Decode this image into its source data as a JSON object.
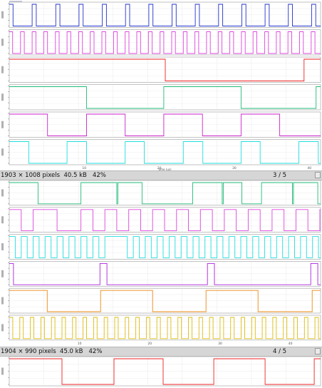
{
  "windows": [
    {
      "id": "win-a",
      "status": {
        "info": "1903 × 1008 pixels  40.5 kB   42%",
        "page": "3 / 5"
      },
      "x_axis": {
        "label": "time (us)"
      },
      "traces": [
        {
          "name": "trace-1",
          "color": "#2233cc",
          "transitions": [
            0,
            0.5,
            3.05,
            3.6,
            6.2,
            6.75,
            9.3,
            9.85,
            12.4,
            12.95,
            15.5,
            16.05,
            18.6,
            19.15,
            21.7,
            22.25,
            24.8,
            25.35,
            27.9,
            28.45,
            31.0,
            31.55,
            34.1,
            34.65,
            37.2,
            37.75,
            40.3,
            40.85
          ]
        },
        {
          "name": "trace-2",
          "color": "#dd44dd",
          "transitions": [
            0,
            0.45,
            1.5,
            2.0,
            3.05,
            3.55,
            4.6,
            5.1,
            6.15,
            6.65,
            7.7,
            8.2,
            9.25,
            9.75,
            10.8,
            11.3,
            12.35,
            12.85,
            13.9,
            14.4,
            15.45,
            15.95,
            17.0,
            17.5,
            18.55,
            19.05,
            20.1,
            20.6,
            21.65,
            22.15,
            23.2,
            23.7,
            24.75,
            25.25,
            26.3,
            26.8,
            27.85,
            28.35,
            29.4,
            29.9,
            30.95,
            31.45,
            32.5,
            33.0,
            34.05,
            34.55,
            35.6,
            36.1,
            37.15,
            37.65,
            38.7,
            39.2,
            40.25,
            40.75
          ]
        },
        {
          "name": "trace-3",
          "color": "#ee2222",
          "transitions": [
            0,
            20.8,
            39.3
          ]
        },
        {
          "name": "trace-4",
          "color": "#22bb77",
          "transitions": [
            0,
            10.3,
            20.6,
            30.9,
            40.9
          ]
        },
        {
          "name": "trace-5",
          "color": "#cc22cc",
          "transitions": [
            0,
            5.1,
            10.3,
            15.45,
            20.6,
            25.75,
            30.9,
            36.05
          ]
        },
        {
          "name": "trace-6",
          "color": "#22dddd",
          "transitions": [
            0,
            2.6,
            7.7,
            10.3,
            15.45,
            18.0,
            23.2,
            25.8,
            30.9,
            33.45,
            38.6,
            41.2
          ]
        }
      ]
    },
    {
      "id": "win-b",
      "status": {
        "info": "1904 × 990 pixels  45.0 kB   42%",
        "page": "4 / 5"
      },
      "x_axis": {
        "label": ""
      },
      "traces": [
        {
          "name": "trace-1",
          "color": "#22bb77",
          "transitions": [
            0,
            4.1,
            10.2,
            15.3,
            15.45,
            18.9,
            26.1,
            30.3,
            30.45,
            33.1,
            35.9,
            40.3,
            40.45,
            43.9
          ]
        },
        {
          "name": "trace-2",
          "color": "#dd44dd",
          "transitions": [
            0,
            1.7,
            3.4,
            6.8,
            10.2,
            11.9,
            13.6,
            15.3,
            17.0,
            18.7,
            20.4,
            22.1,
            23.8,
            25.5,
            27.2,
            28.9,
            30.6,
            32.3,
            34.0,
            35.7,
            37.4,
            39.1,
            40.8,
            42.5,
            44.2
          ]
        },
        {
          "name": "trace-3",
          "color": "#22dddd",
          "transitions": [
            0,
            0.85,
            1.7,
            2.55,
            3.4,
            4.25,
            5.1,
            5.95,
            6.8,
            7.65,
            8.5,
            9.35,
            10.2,
            11.05,
            11.9,
            12.75,
            13.6,
            16.8,
            17.65,
            18.5,
            19.35,
            20.2,
            21.05,
            21.9,
            22.75,
            23.6,
            24.45,
            25.3,
            26.15,
            27.0,
            27.85,
            28.7,
            29.55,
            30.4,
            31.25,
            32.1,
            32.95,
            33.8,
            34.65,
            35.5,
            36.35,
            37.2,
            38.05,
            38.9,
            39.75,
            40.6,
            41.45,
            42.3,
            43.15,
            44.0
          ]
        },
        {
          "name": "trace-4",
          "color": "#aa22dd",
          "transitions": [
            0,
            0.6,
            12.9,
            13.9,
            28.2,
            29.2,
            42.9,
            43.9
          ]
        },
        {
          "name": "trace-5",
          "color": "#ee8811",
          "transitions": [
            0,
            5.4,
            13.0,
            20.4,
            28.0,
            35.4,
            43.1
          ]
        },
        {
          "name": "trace-6",
          "color": "#ddbb11",
          "transitions": [
            0,
            0.5,
            1.5,
            2.0,
            3.0,
            3.5,
            4.5,
            5.0,
            6.0,
            6.5,
            7.5,
            8.0,
            9.0,
            9.5,
            10.5,
            11.0,
            12.0,
            12.5,
            13.5,
            14.0,
            15.0,
            15.5,
            16.5,
            17.0,
            18.0,
            18.5,
            19.5,
            20.0,
            21.0,
            21.5,
            22.5,
            23.0,
            24.0,
            24.5,
            25.5,
            26.0,
            27.0,
            27.5,
            28.5,
            29.0,
            30.0,
            30.5,
            31.5,
            32.0,
            33.0,
            33.5,
            34.5,
            35.0,
            36.0,
            36.5,
            37.5,
            38.0,
            39.0,
            39.5,
            40.5,
            41.0,
            42.0,
            42.5,
            43.5,
            44.0
          ]
        }
      ]
    },
    {
      "id": "win-c",
      "traces": [
        {
          "name": "trace-1",
          "color": "#ee2222",
          "transitions": [
            0,
            7.5,
            14.9,
            21.9,
            29.1,
            36.4,
            43.4
          ]
        }
      ]
    }
  ],
  "x_ticks_a": [
    "10",
    "20",
    "30",
    "40"
  ],
  "x_ticks_b": [
    "10",
    "20",
    "30",
    "40"
  ]
}
